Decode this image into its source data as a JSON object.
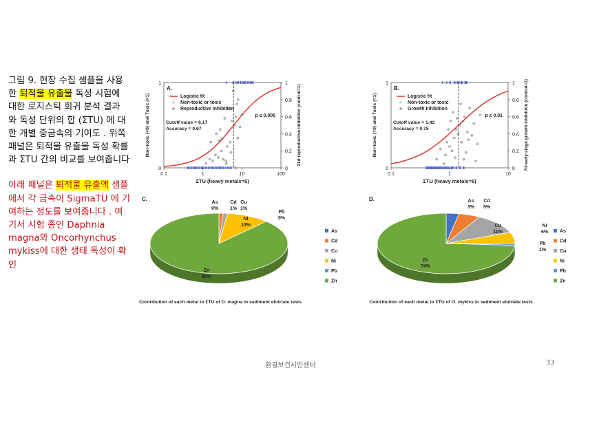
{
  "caption": {
    "p1_before": "그림 9. 현장 수집 샘플을 사용한 ",
    "p1_highlight": "퇴적물 유출물",
    "p1_after": " 독성 시험에 대한 로지스틱 회귀 분석 결과 와 독성 단위의 합 (ΣTU) 에 대한 개별 중금속의 기여도 . 위쪽 패널은 퇴적물 유출물 독성 확률과 ΣTU 간의 비교를 보여줍니다",
    "p2_before": "아래 패널은 ",
    "p2_highlight": "퇴적물 유출액",
    "p2_after": " 샘플에서 각 금속이 SigmaTU 에 기여하는 정도를 보여줍니다 . 여기서 시험 종인 Daphnia magna와 Oncorhynchus mykiss에 대한 생태 독성이 확인"
  },
  "footer": {
    "org": "환경보건시민센터",
    "page": "33"
  },
  "colors": {
    "fit": "#d93a30",
    "points": "#8a8a8a",
    "blue": "#4a5bd0",
    "zn": "#6fa83c",
    "cd": "#ed7d31",
    "cu": "#a5a5a5",
    "ni": "#ffc000",
    "as": "#4472c4",
    "pb": "#5b9bd5"
  },
  "chart_data": [
    {
      "type": "scatter",
      "panel": "A.",
      "legend": [
        "Logistic fit",
        "Non-toxic or toxic",
        "Reproductive inhibition"
      ],
      "annotation": "Cutoff value = 6.17\nAccuracy = 0.67",
      "pvalue": "p ≤ 0.005",
      "xlabel": "ΣTU (heavy metals=6)",
      "ylabel_left": "Non-toxic (=0) and Toxic (=1)",
      "ylabel_right": "21d-reproductive inhibition (control=1)",
      "xscale": "log",
      "x_ticks": [
        "0.1",
        "1",
        "10",
        "100"
      ],
      "y_ticks_left": [
        "0",
        "1"
      ],
      "y_ticks_right": [
        "0",
        "0.2",
        "0.4",
        "0.6",
        "0.8",
        "1"
      ],
      "cutoff": 6.17,
      "logistic": {
        "x0": 6.17,
        "k": 2.3
      },
      "points": [
        [
          1.2,
          0.05
        ],
        [
          1.5,
          0.1
        ],
        [
          1.8,
          0.08
        ],
        [
          2.1,
          0.15
        ],
        [
          2.5,
          0.12
        ],
        [
          3,
          0.2
        ],
        [
          3.3,
          0.1
        ],
        [
          4,
          0.05
        ],
        [
          2.2,
          0.4
        ],
        [
          2.6,
          0.32
        ],
        [
          3.1,
          0.34
        ],
        [
          4.2,
          0.25
        ],
        [
          5,
          0.3
        ],
        [
          5.5,
          0.55
        ],
        [
          6.5,
          0.5
        ],
        [
          7,
          0.6
        ],
        [
          7.5,
          0.75
        ],
        [
          8,
          0.8
        ],
        [
          9,
          0.48
        ],
        [
          10,
          0.62
        ],
        [
          4.8,
          0.7
        ],
        [
          3.6,
          0.58
        ],
        [
          2.8,
          0.45
        ],
        [
          1.6,
          0.3
        ],
        [
          5.2,
          0.18
        ],
        [
          6,
          0.9
        ],
        [
          3.9,
          0.08
        ],
        [
          7.8,
          0.35
        ]
      ]
    },
    {
      "type": "scatter",
      "panel": "B.",
      "legend": [
        "Logistic fit",
        "Non-toxic or toxic",
        "Growth inhibition"
      ],
      "annotation": "Cutoff value = 1.42\nAccuracy = 0.75",
      "pvalue": "p ≤ 0.01",
      "xlabel": "ΣTU (heavy metals=6)",
      "ylabel_left": "Non-toxic (=0) and Toxic (=1)",
      "ylabel_right": "7d-early stage growth inhibition (control=1)",
      "xscale": "log",
      "x_ticks": [
        "0.1",
        "1",
        "10"
      ],
      "y_ticks_left": [
        "0",
        "1"
      ],
      "y_ticks_right": [
        "0",
        "0.2",
        "0.4",
        "0.6",
        "0.8",
        "1"
      ],
      "cutoff": 1.42,
      "logistic": {
        "x0": 1.42,
        "k": 2.6
      },
      "points": [
        [
          0.6,
          0.1
        ],
        [
          0.8,
          0.05
        ],
        [
          0.9,
          0.3
        ],
        [
          1,
          0.25
        ],
        [
          1.1,
          0.2
        ],
        [
          1.2,
          0.35
        ],
        [
          1.3,
          0.45
        ],
        [
          1.4,
          0.4
        ],
        [
          1.5,
          0.5
        ],
        [
          1.6,
          0.3
        ],
        [
          1.7,
          0.55
        ],
        [
          1.8,
          0.6
        ],
        [
          2,
          0.42
        ],
        [
          2.2,
          0.7
        ],
        [
          2.4,
          0.38
        ],
        [
          2.6,
          0.52
        ],
        [
          3,
          0.28
        ],
        [
          3.3,
          0.62
        ],
        [
          1.05,
          0.55
        ],
        [
          0.95,
          0.45
        ],
        [
          1.25,
          0.12
        ],
        [
          1.9,
          0.18
        ],
        [
          2.8,
          0.08
        ],
        [
          1.15,
          0.65
        ],
        [
          0.7,
          0.22
        ],
        [
          1.55,
          0.75
        ],
        [
          2.1,
          0.33
        ],
        [
          0.85,
          0.15
        ],
        [
          1.35,
          0.58
        ],
        [
          1.75,
          0.1
        ]
      ]
    },
    {
      "type": "pie",
      "panel": "C.",
      "title_before": "Contribution of each metal to ΣTU of ",
      "title_italic": "D. magna",
      "title_after": " in sediment elutriate tests",
      "labels": [
        "As",
        "Cd",
        "Cu",
        "Ni",
        "Pb",
        "Zn"
      ],
      "values": [
        0,
        1,
        1,
        10,
        0,
        88
      ],
      "slice_labels": [
        "As\n0%",
        "Cd\n1%",
        "Cu\n1%",
        "Ni\n10%",
        "Pb\n0%",
        "Zn\n88%"
      ]
    },
    {
      "type": "pie",
      "panel": "D.",
      "title_before": "Contribution of each metal to ΣTU of ",
      "title_italic": "O. mykiss",
      "title_after": " in sediment elutriate tests",
      "labels": [
        "As",
        "Cd",
        "Cu",
        "Ni",
        "Pb",
        "Zn"
      ],
      "values": [
        3,
        5,
        11,
        6,
        1,
        74
      ],
      "slice_labels": [
        "As\n3%",
        "Cd\n5%",
        "Cu\n11%",
        "Ni\n6%",
        "Pb\n1%",
        "Zn\n74%"
      ]
    }
  ]
}
